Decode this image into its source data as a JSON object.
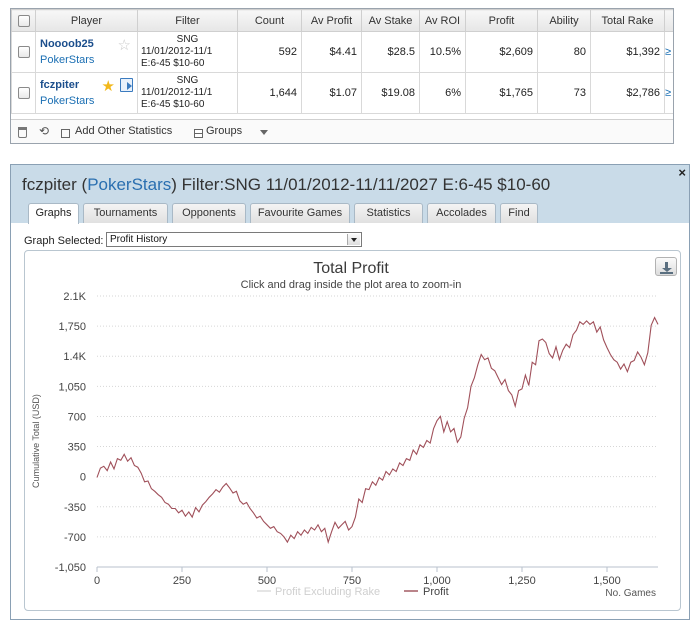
{
  "table": {
    "headers": [
      "Player",
      "Filter",
      "Count",
      "Av Profit",
      "Av Stake",
      "Av ROI",
      "Profit",
      "Ability",
      "Total Rake"
    ],
    "rows": [
      {
        "player": "Noooob25",
        "site": "PokerStars",
        "filter_l1": "SNG",
        "filter_l2": "11/01/2012-11/1",
        "filter_l3": "E:6-45 $10-60",
        "count": "592",
        "av_profit": "$4.41",
        "av_stake": "$28.5",
        "av_roi": "10.5%",
        "profit": "$2,609",
        "ability": "80",
        "total_rake": "$1,392"
      },
      {
        "player": "fczpiter",
        "site": "PokerStars",
        "filter_l1": "SNG",
        "filter_l2": "11/01/2012-11/1",
        "filter_l3": "E:6-45 $10-60",
        "count": "1,644",
        "av_profit": "$1.07",
        "av_stake": "$19.08",
        "av_roi": "6%",
        "profit": "$1,765",
        "ability": "73",
        "total_rake": "$2,786"
      }
    ],
    "footer": {
      "add_stats": "Add Other Statistics",
      "groups": "Groups"
    }
  },
  "panel": {
    "title_player": "fczpiter",
    "title_site": "PokerStars",
    "title_filter": "Filter:SNG 11/01/2012-11/11/2027 E:6-45 $10-60",
    "close": "×",
    "tabs": [
      "Graphs",
      "Tournaments",
      "Opponents",
      "Favourite Games",
      "Statistics",
      "Accolades",
      "Find"
    ],
    "active_tab": 0,
    "graph_selected_label": "Graph Selected:",
    "graph_selected_value": "Profit History"
  },
  "chart_data": {
    "type": "line",
    "title": "Total Profit",
    "subtitle": "Click and drag inside the plot area to zoom-in",
    "ylabel": "Cumulative Total (USD)",
    "xlabel": "No. Games",
    "y_ticks": [
      "2.1K",
      "1,750",
      "1.4K",
      "1,050",
      "700",
      "350",
      "0",
      "-350",
      "-700",
      "-1,050"
    ],
    "y_tick_values": [
      2100,
      1750,
      1400,
      1050,
      700,
      350,
      0,
      -350,
      -700,
      -1050
    ],
    "x_ticks": [
      "0",
      "250",
      "500",
      "750",
      "1,000",
      "1,250",
      "1,500"
    ],
    "x_tick_values": [
      0,
      250,
      500,
      750,
      1000,
      1250,
      1500
    ],
    "xlim": [
      0,
      1650
    ],
    "ylim": [
      -1050,
      2100
    ],
    "legend": [
      "Profit Excluding Rake",
      "Profit"
    ],
    "series": [
      {
        "name": "Profit",
        "color": "#a0505a",
        "points": [
          [
            0,
            -10
          ],
          [
            10,
            100
          ],
          [
            20,
            120
          ],
          [
            30,
            70
          ],
          [
            40,
            170
          ],
          [
            50,
            90
          ],
          [
            60,
            210
          ],
          [
            70,
            190
          ],
          [
            80,
            260
          ],
          [
            90,
            180
          ],
          [
            100,
            220
          ],
          [
            110,
            130
          ],
          [
            120,
            110
          ],
          [
            130,
            40
          ],
          [
            140,
            -60
          ],
          [
            150,
            -50
          ],
          [
            160,
            -140
          ],
          [
            170,
            -170
          ],
          [
            180,
            -210
          ],
          [
            190,
            -240
          ],
          [
            200,
            -300
          ],
          [
            210,
            -320
          ],
          [
            220,
            -370
          ],
          [
            230,
            -370
          ],
          [
            240,
            -420
          ],
          [
            250,
            -390
          ],
          [
            260,
            -460
          ],
          [
            270,
            -410
          ],
          [
            280,
            -470
          ],
          [
            290,
            -360
          ],
          [
            300,
            -410
          ],
          [
            310,
            -330
          ],
          [
            320,
            -290
          ],
          [
            330,
            -240
          ],
          [
            340,
            -200
          ],
          [
            350,
            -150
          ],
          [
            360,
            -180
          ],
          [
            370,
            -120
          ],
          [
            380,
            -80
          ],
          [
            390,
            -130
          ],
          [
            400,
            -190
          ],
          [
            410,
            -170
          ],
          [
            420,
            -280
          ],
          [
            430,
            -320
          ],
          [
            440,
            -300
          ],
          [
            450,
            -370
          ],
          [
            460,
            -420
          ],
          [
            470,
            -480
          ],
          [
            480,
            -460
          ],
          [
            490,
            -520
          ],
          [
            500,
            -560
          ],
          [
            510,
            -600
          ],
          [
            520,
            -580
          ],
          [
            530,
            -640
          ],
          [
            540,
            -660
          ],
          [
            550,
            -700
          ],
          [
            560,
            -760
          ],
          [
            570,
            -680
          ],
          [
            580,
            -720
          ],
          [
            590,
            -640
          ],
          [
            600,
            -680
          ],
          [
            610,
            -620
          ],
          [
            620,
            -660
          ],
          [
            630,
            -590
          ],
          [
            640,
            -620
          ],
          [
            650,
            -560
          ],
          [
            660,
            -640
          ],
          [
            670,
            -600
          ],
          [
            680,
            -760
          ],
          [
            690,
            -640
          ],
          [
            700,
            -530
          ],
          [
            710,
            -600
          ],
          [
            720,
            -560
          ],
          [
            730,
            -520
          ],
          [
            740,
            -620
          ],
          [
            750,
            -580
          ],
          [
            760,
            -470
          ],
          [
            770,
            -260
          ],
          [
            780,
            -300
          ],
          [
            790,
            -140
          ],
          [
            800,
            -150
          ],
          [
            810,
            -60
          ],
          [
            820,
            -100
          ],
          [
            830,
            -10
          ],
          [
            840,
            -40
          ],
          [
            850,
            60
          ],
          [
            860,
            20
          ],
          [
            870,
            90
          ],
          [
            880,
            60
          ],
          [
            890,
            160
          ],
          [
            900,
            130
          ],
          [
            910,
            210
          ],
          [
            920,
            190
          ],
          [
            930,
            310
          ],
          [
            940,
            260
          ],
          [
            950,
            370
          ],
          [
            960,
            340
          ],
          [
            970,
            420
          ],
          [
            980,
            390
          ],
          [
            990,
            560
          ],
          [
            1000,
            650
          ],
          [
            1010,
            700
          ],
          [
            1020,
            520
          ],
          [
            1030,
            640
          ],
          [
            1040,
            520
          ],
          [
            1050,
            560
          ],
          [
            1060,
            400
          ],
          [
            1070,
            460
          ],
          [
            1080,
            680
          ],
          [
            1090,
            800
          ],
          [
            1100,
            1050
          ],
          [
            1110,
            1150
          ],
          [
            1120,
            1300
          ],
          [
            1130,
            1420
          ],
          [
            1140,
            1360
          ],
          [
            1150,
            1380
          ],
          [
            1160,
            1260
          ],
          [
            1170,
            1230
          ],
          [
            1180,
            1150
          ],
          [
            1190,
            1070
          ],
          [
            1200,
            1130
          ],
          [
            1210,
            1000
          ],
          [
            1220,
            950
          ],
          [
            1230,
            820
          ],
          [
            1240,
            1000
          ],
          [
            1250,
            1020
          ],
          [
            1260,
            1180
          ],
          [
            1270,
            1060
          ],
          [
            1280,
            1330
          ],
          [
            1290,
            1300
          ],
          [
            1300,
            1580
          ],
          [
            1310,
            1600
          ],
          [
            1320,
            1560
          ],
          [
            1330,
            1430
          ],
          [
            1340,
            1380
          ],
          [
            1350,
            1510
          ],
          [
            1360,
            1360
          ],
          [
            1370,
            1470
          ],
          [
            1380,
            1540
          ],
          [
            1390,
            1500
          ],
          [
            1400,
            1650
          ],
          [
            1410,
            1700
          ],
          [
            1420,
            1800
          ],
          [
            1430,
            1770
          ],
          [
            1440,
            1810
          ],
          [
            1450,
            1770
          ],
          [
            1460,
            1800
          ],
          [
            1470,
            1680
          ],
          [
            1480,
            1740
          ],
          [
            1490,
            1590
          ],
          [
            1500,
            1500
          ],
          [
            1510,
            1420
          ],
          [
            1520,
            1360
          ],
          [
            1530,
            1330
          ],
          [
            1540,
            1250
          ],
          [
            1550,
            1310
          ],
          [
            1560,
            1220
          ],
          [
            1570,
            1330
          ],
          [
            1580,
            1350
          ],
          [
            1590,
            1450
          ],
          [
            1600,
            1390
          ],
          [
            1610,
            1300
          ],
          [
            1620,
            1440
          ],
          [
            1630,
            1760
          ],
          [
            1640,
            1850
          ],
          [
            1650,
            1770
          ]
        ]
      }
    ]
  }
}
